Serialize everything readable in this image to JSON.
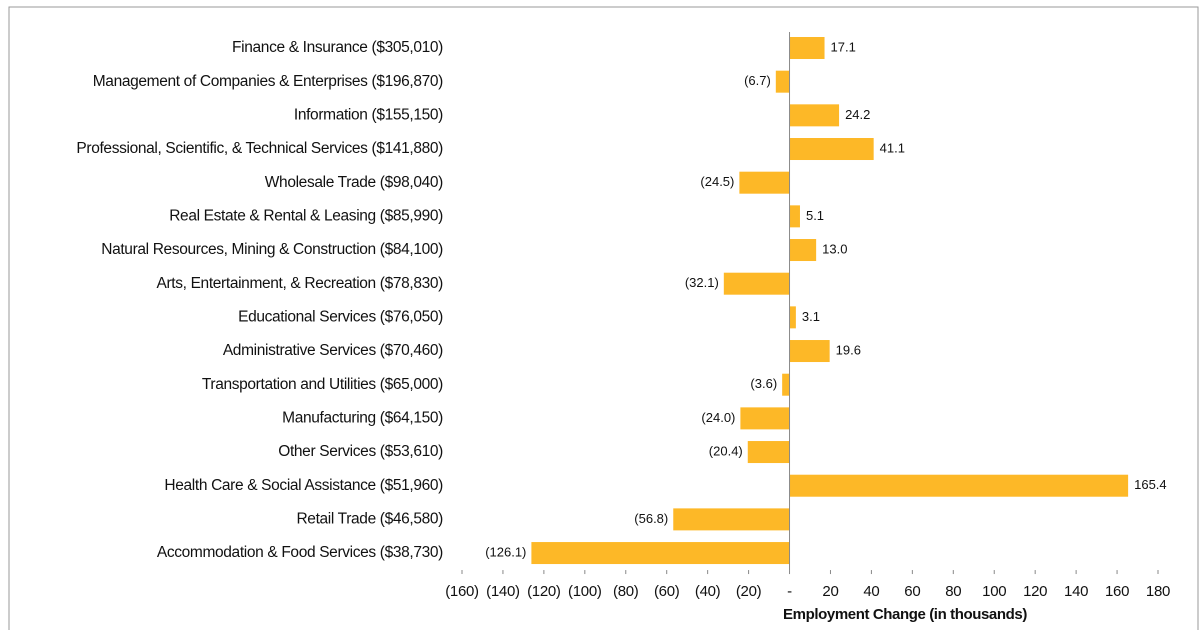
{
  "chart_data": {
    "type": "hbar",
    "categories": [
      "Finance & Insurance ($305,010)",
      "Management of Companies & Enterprises ($196,870)",
      "Information ($155,150)",
      "Professional, Scientific, & Technical Services ($141,880)",
      "Wholesale Trade ($98,040)",
      "Real Estate & Rental & Leasing ($85,990)",
      "Natural Resources, Mining & Construction ($84,100)",
      "Arts, Entertainment, & Recreation ($78,830)",
      "Educational Services ($76,050)",
      "Administrative Services ($70,460)",
      "Transportation and Utilities ($65,000)",
      "Manufacturing ($64,150)",
      "Other Services ($53,610)",
      "Health Care & Social Assistance ($51,960)",
      "Retail Trade ($46,580)",
      "Accommodation & Food Services ($38,730)"
    ],
    "values": [
      17.1,
      -6.7,
      24.2,
      41.1,
      -24.5,
      5.1,
      13.0,
      -32.1,
      3.1,
      19.6,
      -3.6,
      -24.0,
      -20.4,
      165.4,
      -56.8,
      -126.1
    ],
    "value_labels": [
      "17.1",
      "(6.7)",
      "24.2",
      "41.1",
      "(24.5)",
      "5.1",
      "13.0",
      "(32.1)",
      "3.1",
      "19.6",
      "(3.6)",
      "(24.0)",
      "(20.4)",
      "165.4",
      "(56.8)",
      "(126.1)"
    ],
    "color": "#fdb827",
    "xlabel": "Employment Change (in thousands)",
    "xlim": [
      -160,
      180
    ],
    "xticks": [
      {
        "value": -160,
        "label": "(160)"
      },
      {
        "value": -140,
        "label": "(140)"
      },
      {
        "value": -120,
        "label": "(120)"
      },
      {
        "value": -100,
        "label": "(100)"
      },
      {
        "value": -80,
        "label": "(80)"
      },
      {
        "value": -60,
        "label": "(60)"
      },
      {
        "value": -40,
        "label": "(40)"
      },
      {
        "value": -20,
        "label": "(20)"
      },
      {
        "value": 0,
        "label": "-"
      },
      20,
      40,
      60,
      80,
      100,
      120,
      140,
      160,
      180
    ]
  }
}
